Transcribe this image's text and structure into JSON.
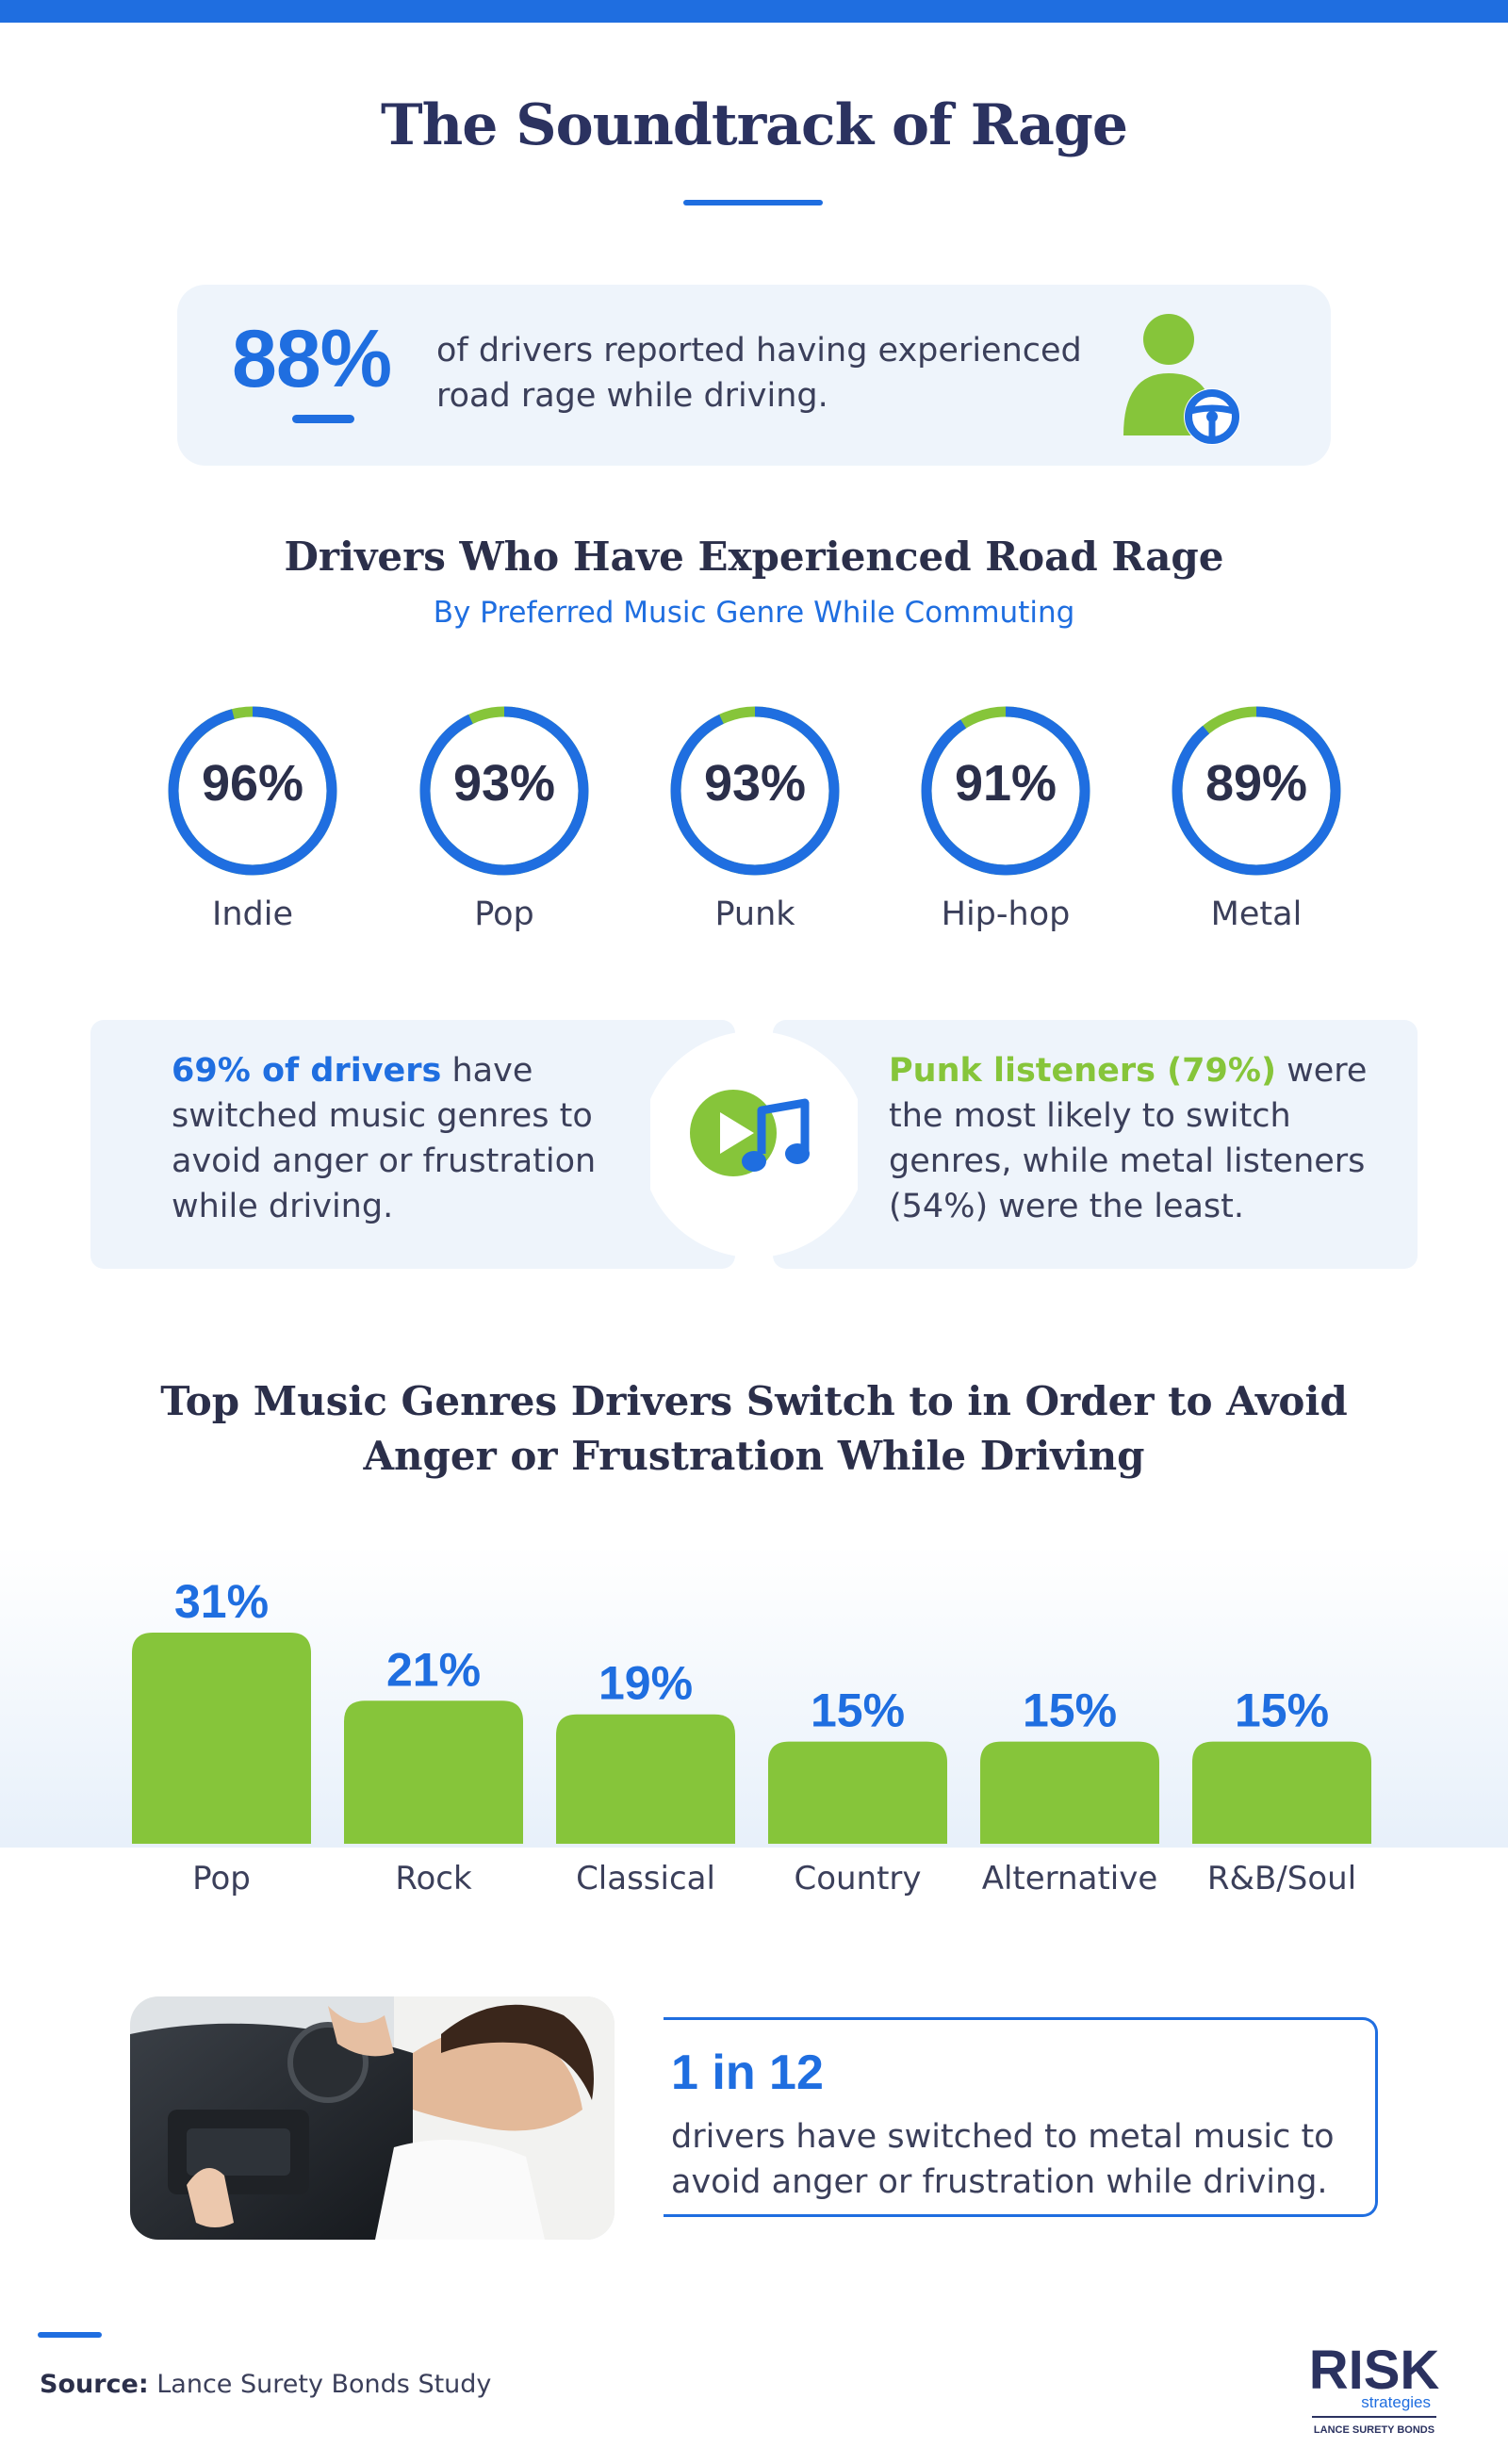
{
  "header": {
    "title": "The Soundtrack of Rage"
  },
  "stat": {
    "value": "88%",
    "text": "of drivers reported having experienced road rage while driving.",
    "icon": "driver-steering-wheel-icon"
  },
  "genres_section": {
    "title": "Drivers Who Have Experienced Road Rage",
    "subtitle": "By Preferred Music Genre While Commuting",
    "items": [
      {
        "value": "96%",
        "pct": 96,
        "label": "Indie"
      },
      {
        "value": "93%",
        "pct": 93,
        "label": "Pop"
      },
      {
        "value": "93%",
        "pct": 93,
        "label": "Punk"
      },
      {
        "value": "91%",
        "pct": 91,
        "label": "Hip-hop"
      },
      {
        "value": "89%",
        "pct": 89,
        "label": "Metal"
      }
    ]
  },
  "switch": {
    "left_highlight": "69% of drivers",
    "left_rest": " have switched music genres to avoid anger or frustration while driving.",
    "right_highlight": "Punk listeners (79%)",
    "right_rest": " were the most likely to switch genres, while metal listeners (54%) were the least.",
    "icon": "play-music-note-icon"
  },
  "chart_data": {
    "type": "bar",
    "title": "Top Music Genres Drivers Switch to in Order to Avoid Anger or Frustration While Driving",
    "categories": [
      "Pop",
      "Rock",
      "Classical",
      "Country",
      "Alternative",
      "R&B/Soul"
    ],
    "values": [
      31,
      21,
      19,
      15,
      15,
      15
    ],
    "value_labels": [
      "31%",
      "21%",
      "19%",
      "15%",
      "15%",
      "15%"
    ],
    "unit": "%",
    "xlabel": "",
    "ylabel": "",
    "grid": false
  },
  "callout": {
    "big": "1 in 12",
    "text": "drivers have switched to metal music to avoid anger or frustration while driving."
  },
  "footer": {
    "source_label": "Source:",
    "source_text": "Lance Surety Bonds Study",
    "logo_main": "RISK",
    "logo_sub": "strategies",
    "logo_tag": "LANCE SURETY BONDS"
  },
  "colors": {
    "brand_blue": "#1f6ee0",
    "accent_green": "#86c53a",
    "navy": "#2b3260",
    "panel_bg": "#eef4fb"
  }
}
